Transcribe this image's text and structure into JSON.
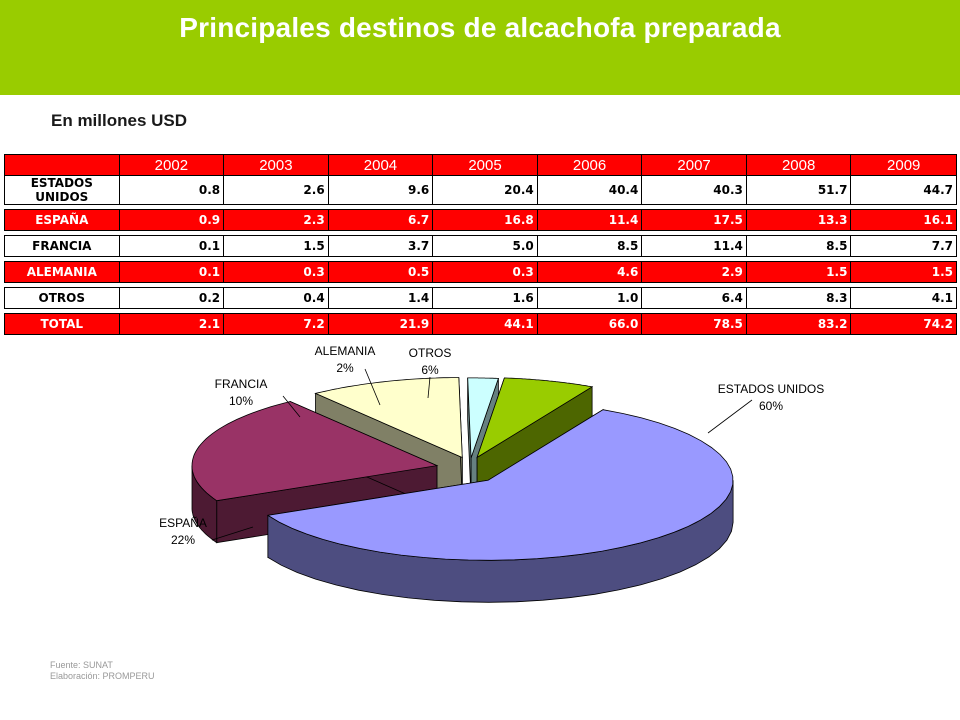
{
  "header": {
    "title": "Principales destinos de alcachofa preparada"
  },
  "subtitle": "En millones USD",
  "table": {
    "years": [
      "2002",
      "2003",
      "2004",
      "2005",
      "2006",
      "2007",
      "2008",
      "2009"
    ],
    "rows": [
      {
        "label": "ESTADOS UNIDOS",
        "values": [
          "0.8",
          "2.6",
          "9.6",
          "20.4",
          "40.4",
          "40.3",
          "51.7",
          "44.7"
        ]
      },
      {
        "label": "ESPAÑA",
        "values": [
          "0.9",
          "2.3",
          "6.7",
          "16.8",
          "11.4",
          "17.5",
          "13.3",
          "16.1"
        ]
      },
      {
        "label": "FRANCIA",
        "values": [
          "0.1",
          "1.5",
          "3.7",
          "5.0",
          "8.5",
          "11.4",
          "8.5",
          "7.7"
        ]
      },
      {
        "label": "ALEMANIA",
        "values": [
          "0.1",
          "0.3",
          "0.5",
          "0.3",
          "4.6",
          "2.9",
          "1.5",
          "1.5"
        ]
      },
      {
        "label": "OTROS",
        "values": [
          "0.2",
          "0.4",
          "1.4",
          "1.6",
          "1.0",
          "6.4",
          "8.3",
          "4.1"
        ]
      },
      {
        "label": "TOTAL",
        "values": [
          "2.1",
          "7.2",
          "21.9",
          "44.1",
          "66.0",
          "78.5",
          "83.2",
          "74.2"
        ]
      }
    ]
  },
  "chart_data": {
    "type": "pie",
    "slices": [
      {
        "name": "ESTADOS UNIDOS",
        "label": "60%",
        "value": 60,
        "color": "#9999ff",
        "side": "#4d4d80"
      },
      {
        "name": "ESPAÑA",
        "label": "22%",
        "value": 22,
        "color": "#993366",
        "side": "#4d1a33"
      },
      {
        "name": "FRANCIA",
        "label": "10%",
        "value": 10,
        "color": "#ffffcc",
        "side": "#808066"
      },
      {
        "name": "ALEMANIA",
        "label": "2%",
        "value": 2,
        "color": "#ccffff",
        "side": "#668080"
      },
      {
        "name": "OTROS",
        "label": "6%",
        "value": 6,
        "color": "#99cc00",
        "side": "#4d6600"
      }
    ]
  },
  "footer": {
    "source": "Fuente: SUNAT",
    "elaboration": "Elaboración: PROMPERU"
  },
  "colors": {
    "header": "#99cc00",
    "table_red": "#ff0000"
  }
}
